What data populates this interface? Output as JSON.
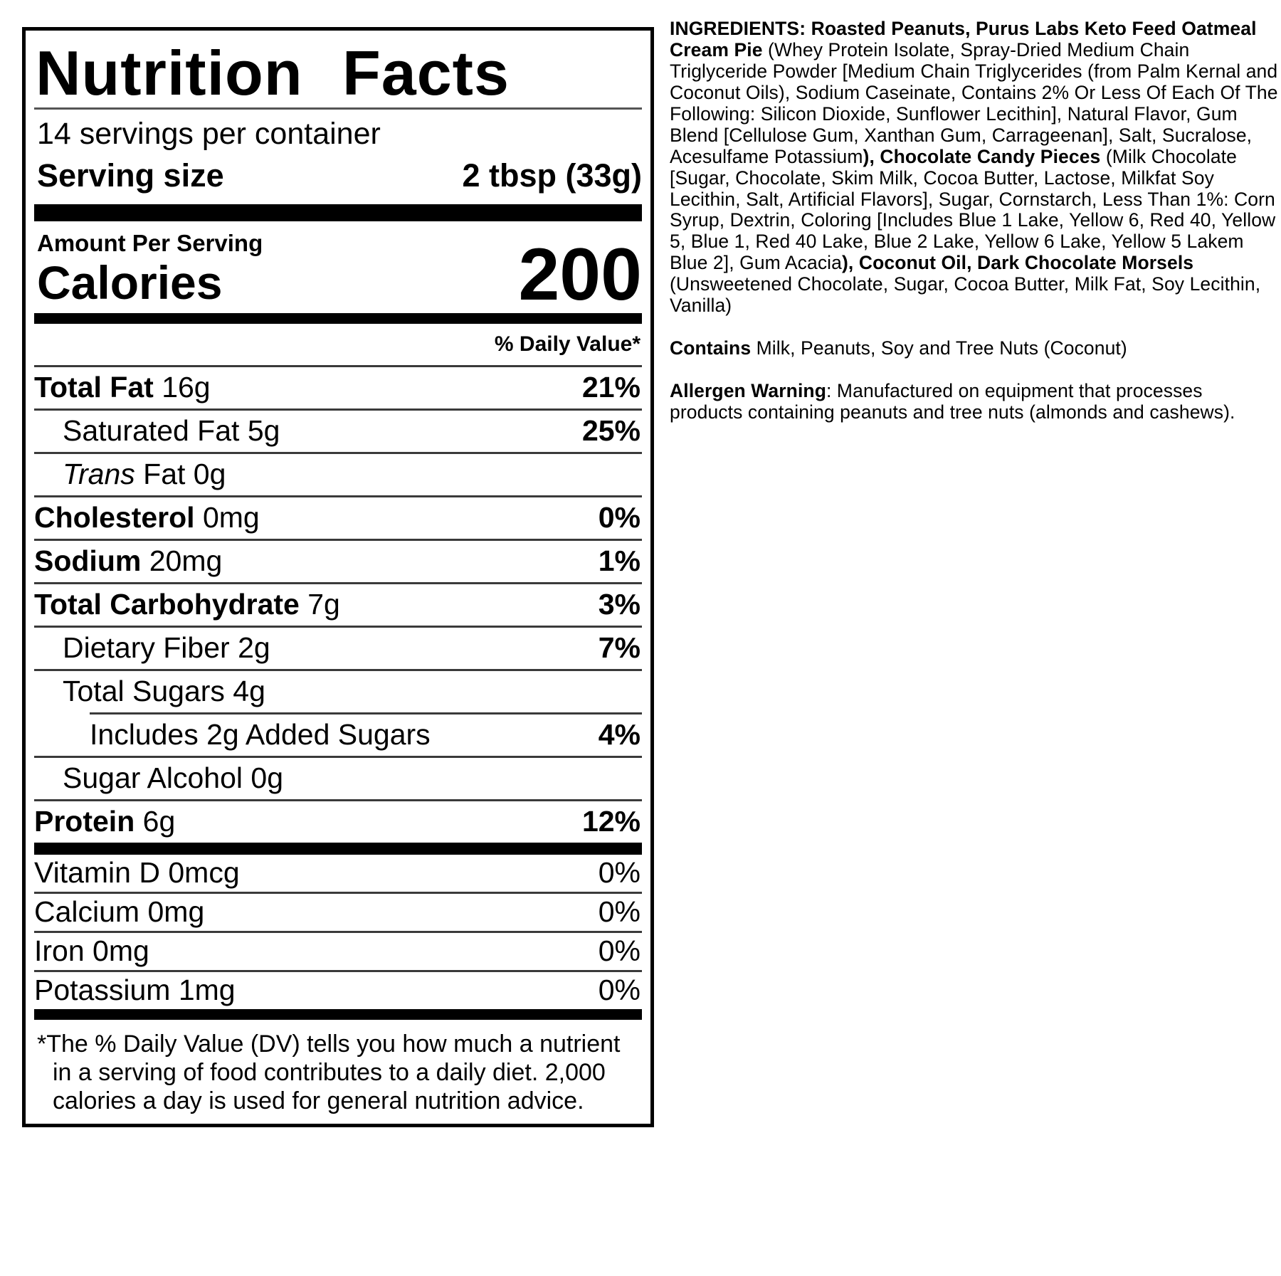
{
  "label": {
    "title": "Nutrition Facts",
    "servings_per_container": "14 servings per container",
    "serving_size": {
      "label": "Serving size",
      "value": "2 tbsp (33g)"
    },
    "amount_per_serving": "Amount Per Serving",
    "calories": {
      "label": "Calories",
      "value": "200"
    },
    "daily_value_header": "% Daily Value*",
    "nutrients": [
      {
        "name": "Total Fat",
        "amount": "16g",
        "dv": "21%",
        "indent": 0,
        "bold": true
      },
      {
        "name": "Saturated Fat",
        "amount": "5g",
        "dv": "25%",
        "indent": 1,
        "bold": false
      },
      {
        "name_italic": "Trans",
        "name": " Fat",
        "amount": "0g",
        "dv": "",
        "indent": 1,
        "bold": false
      },
      {
        "name": "Cholesterol",
        "amount": "0mg",
        "dv": "0%",
        "indent": 0,
        "bold": true
      },
      {
        "name": "Sodium",
        "amount": "20mg",
        "dv": "1%",
        "indent": 0,
        "bold": true
      },
      {
        "name": "Total Carbohydrate",
        "amount": "7g",
        "dv": "3%",
        "indent": 0,
        "bold": true
      },
      {
        "name": "Dietary Fiber",
        "amount": "2g",
        "dv": "7%",
        "indent": 1,
        "bold": false
      },
      {
        "name": "Total Sugars",
        "amount": "4g",
        "dv": "",
        "indent": 1,
        "bold": false
      },
      {
        "name": "Includes 2g Added Sugars",
        "amount": "",
        "dv": "4%",
        "indent": 2,
        "bold": false
      },
      {
        "name": "Sugar Alcohol",
        "amount": "0g",
        "dv": "",
        "indent": 1,
        "bold": false
      },
      {
        "name": "Protein",
        "amount": "6g",
        "dv": "12%",
        "indent": 0,
        "bold": true
      }
    ],
    "vitamins": [
      {
        "name": "Vitamin D",
        "amount": "0mcg",
        "dv": "0%"
      },
      {
        "name": "Calcium",
        "amount": "0mg",
        "dv": "0%"
      },
      {
        "name": "Iron",
        "amount": "0mg",
        "dv": "0%"
      },
      {
        "name": "Potassium",
        "amount": "1mg",
        "dv": "0%"
      }
    ],
    "footnote": "*The % Daily Value (DV) tells you how much a nutrient in a serving of food contributes to a daily diet. 2,000 calories a day is used for general nutrition advice."
  },
  "ingredients_panel": {
    "paragraphs": [
      {
        "name": "ingredients",
        "segments": [
          {
            "text": "INGREDIENTS: Roasted Peanuts, Purus Labs Keto Feed Oatmeal Cream Pie",
            "bold": true
          },
          {
            "text": " (Whey Protein Isolate, Spray-Dried Medium Chain Triglyceride Powder [Medium Chain Triglycerides (from Palm Kernal and Coconut Oils), Sodium Caseinate, Contains 2% Or Less Of Each Of The Following: Silicon Dioxide, Sunflower Lecithin], Natural Flavor, Gum Blend [Cellulose Gum, Xanthan Gum, Carrageenan], Salt, Sucralose, Acesulfame Potassium",
            "bold": false
          },
          {
            "text": "), Chocolate Candy Pieces",
            "bold": true
          },
          {
            "text": " (Milk Chocolate [Sugar, Chocolate, Skim Milk, Cocoa Butter, Lactose, Milkfat Soy Lecithin, Salt, Artificial Flavors], Sugar, Cornstarch, Less Than 1%: Corn Syrup, Dextrin, Coloring [Includes Blue 1 Lake, Yellow 6, Red 40, Yellow 5, Blue 1, Red 40 Lake, Blue 2 Lake, Yellow 6 Lake, Yellow 5 Lakem Blue 2], Gum Acacia",
            "bold": false
          },
          {
            "text": "), Coconut Oil, Dark Chocolate Morsels",
            "bold": true
          },
          {
            "text": " (Unsweetened Chocolate, Sugar, Cocoa Butter, Milk Fat, Soy Lecithin, Vanilla)",
            "bold": false
          }
        ]
      },
      {
        "name": "contains",
        "segments": [
          {
            "text": "Contains",
            "bold": true
          },
          {
            "text": " Milk, Peanuts, Soy and Tree Nuts (Coconut)",
            "bold": false
          }
        ]
      },
      {
        "name": "allergen-warning",
        "segments": [
          {
            "text": "Allergen Warning",
            "bold": true
          },
          {
            "text": ": Manufactured on equipment that processes products containing peanuts and tree nuts (almonds and cashews).",
            "bold": false
          }
        ]
      }
    ]
  }
}
